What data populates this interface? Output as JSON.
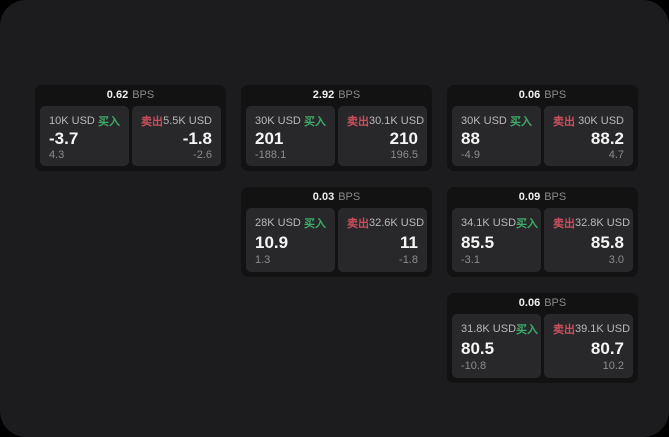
{
  "labels": {
    "buy": "买入",
    "sell": "卖出",
    "bps_unit": "BPS"
  },
  "colors": {
    "buy": "#3faa6a",
    "sell": "#c94f5f",
    "panel_background": "#1c1c1e",
    "card_background": "#121212",
    "subpanel_background": "#28282a"
  },
  "cards": [
    {
      "row": 1,
      "col": 1,
      "bps": "0.62",
      "buy": {
        "notional": "10K USD",
        "price": "-3.7",
        "delta": "4.3"
      },
      "sell": {
        "notional": "5.5K USD",
        "price": "-1.8",
        "delta": "-2.6"
      }
    },
    {
      "row": 1,
      "col": 2,
      "bps": "2.92",
      "buy": {
        "notional": "30K USD",
        "price": "201",
        "delta": "-188.1"
      },
      "sell": {
        "notional": "30.1K USD",
        "price": "210",
        "delta": "196.5"
      }
    },
    {
      "row": 1,
      "col": 3,
      "bps": "0.06",
      "buy": {
        "notional": "30K USD",
        "price": "88",
        "delta": "-4.9"
      },
      "sell": {
        "notional": "30K USD",
        "price": "88.2",
        "delta": "4.7"
      }
    },
    {
      "row": 2,
      "col": 2,
      "bps": "0.03",
      "buy": {
        "notional": "28K USD",
        "price": "10.9",
        "delta": "1.3"
      },
      "sell": {
        "notional": "32.6K USD",
        "price": "11",
        "delta": "-1.8"
      }
    },
    {
      "row": 2,
      "col": 3,
      "bps": "0.09",
      "buy": {
        "notional": "34.1K USD",
        "price": "85.5",
        "delta": "-3.1"
      },
      "sell": {
        "notional": "32.8K USD",
        "price": "85.8",
        "delta": "3.0"
      }
    },
    {
      "row": 3,
      "col": 3,
      "bps": "0.06",
      "buy": {
        "notional": "31.8K USD",
        "price": "80.5",
        "delta": "-10.8"
      },
      "sell": {
        "notional": "39.1K USD",
        "price": "80.7",
        "delta": "10.2"
      }
    }
  ]
}
